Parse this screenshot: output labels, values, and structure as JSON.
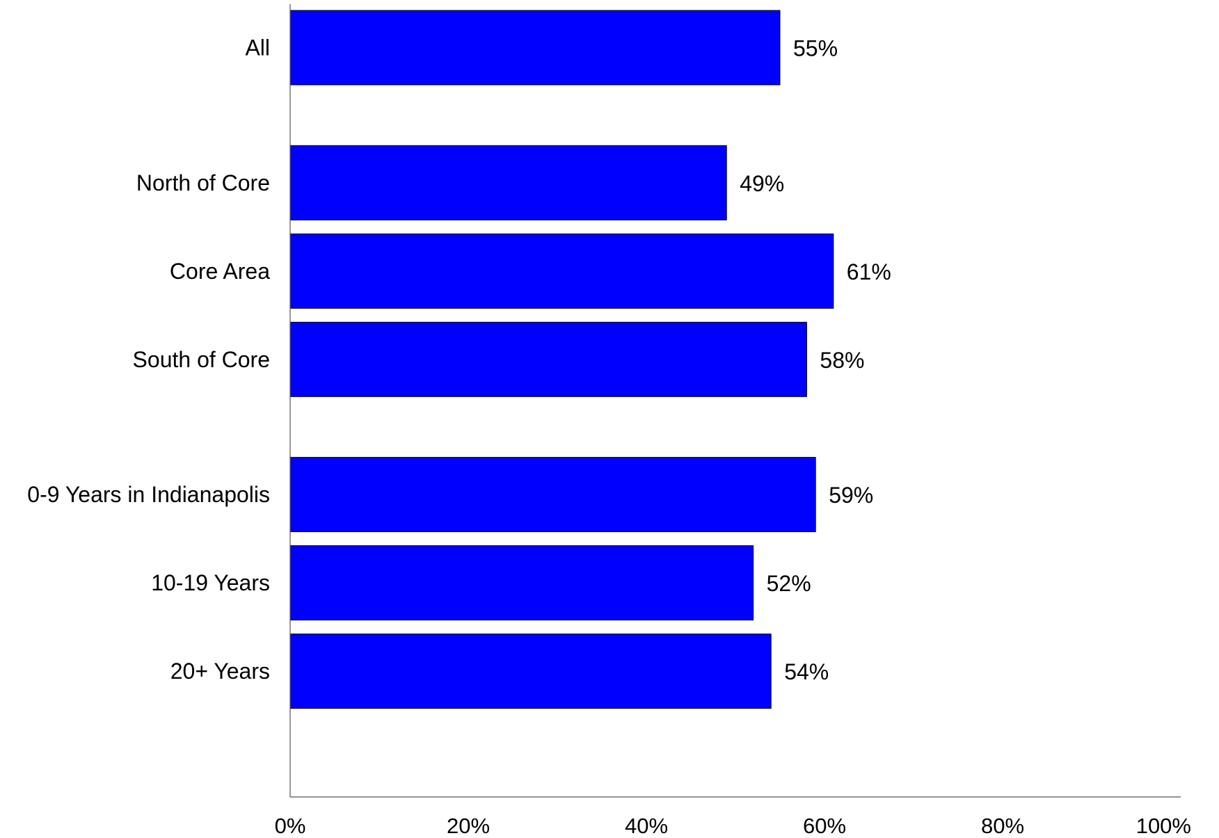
{
  "chart_data": {
    "type": "bar",
    "orientation": "horizontal",
    "categories": [
      "All",
      "North of Core",
      "Core Area",
      "South of Core",
      "0-9 Years in Indianapolis",
      "10-19 Years",
      "20+ Years"
    ],
    "values": [
      55,
      49,
      61,
      58,
      59,
      52,
      54
    ],
    "value_labels": [
      "55%",
      "49%",
      "61%",
      "58%",
      "59%",
      "52%",
      "54%"
    ],
    "groups": [
      [
        "All"
      ],
      [
        "North of Core",
        "Core Area",
        "South of Core"
      ],
      [
        "0-9 Years in Indianapolis",
        "10-19 Years",
        "20+ Years"
      ]
    ],
    "x_ticks": [
      0,
      20,
      40,
      60,
      80,
      100
    ],
    "x_tick_labels": [
      "0%",
      "20%",
      "40%",
      "60%",
      "80%",
      "100%"
    ],
    "xlim": [
      0,
      100
    ],
    "title": "",
    "xlabel": "",
    "ylabel": "",
    "grid": false,
    "legend": "none",
    "bar_color": "#0000FF",
    "bar_edge_color": "#000000"
  }
}
